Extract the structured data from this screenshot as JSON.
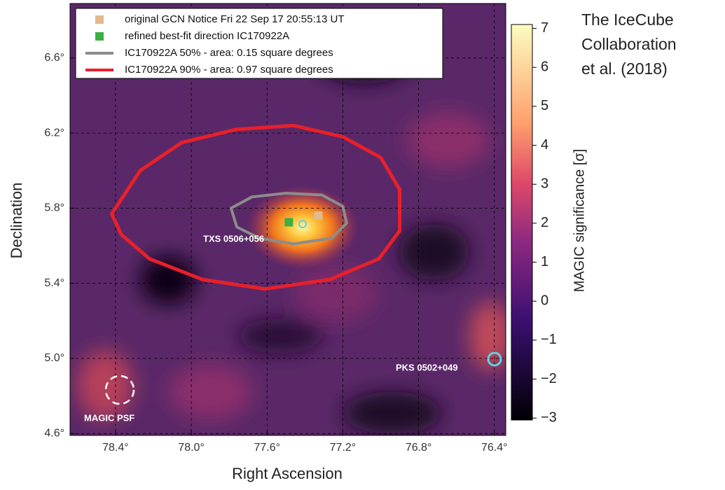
{
  "chart_data": {
    "type": "scatter",
    "xlabel": "Right Ascension",
    "ylabel": "Declination",
    "xlim": [
      78.64,
      76.34
    ],
    "ylim": [
      4.59,
      6.89
    ],
    "xticks": [
      {
        "value": 78.4,
        "label": "78.4°"
      },
      {
        "value": 78.0,
        "label": "78.0°"
      },
      {
        "value": 77.6,
        "label": "77.6°"
      },
      {
        "value": 77.2,
        "label": "77.2°"
      },
      {
        "value": 76.8,
        "label": "76.8°"
      },
      {
        "value": 76.4,
        "label": "76.4°"
      }
    ],
    "yticks": [
      {
        "value": 4.6,
        "label": "4.6°"
      },
      {
        "value": 5.0,
        "label": "5.0°"
      },
      {
        "value": 5.4,
        "label": "5.4°"
      },
      {
        "value": 5.8,
        "label": "5.8°"
      },
      {
        "value": 6.2,
        "label": "6.2°"
      },
      {
        "value": 6.6,
        "label": "6.6°"
      }
    ],
    "grid": true,
    "series": [
      {
        "name": "original GCN Notice Fri 22 Sep 17 20:55:13 UT",
        "color": "#e3b98e",
        "style": "marker",
        "x": [
          77.33
        ],
        "y": [
          5.76
        ]
      },
      {
        "name": "refined best-fit direction IC170922A",
        "color": "#3cb043",
        "style": "marker",
        "x": [
          77.485
        ],
        "y": [
          5.725
        ]
      },
      {
        "name": "IC170922A 50% - area: 0.15 square degrees",
        "color": "#8c8c8c",
        "style": "line",
        "x": [
          77.79,
          77.68,
          77.5,
          77.31,
          77.2,
          77.18,
          77.26,
          77.46,
          77.64,
          77.76
        ],
        "y": [
          5.8,
          5.86,
          5.88,
          5.87,
          5.81,
          5.72,
          5.64,
          5.61,
          5.64,
          5.7
        ]
      },
      {
        "name": "IC170922A 90% - area: 0.97 square degrees",
        "color": "#e8202a",
        "style": "line",
        "x": [
          78.42,
          78.27,
          78.05,
          77.76,
          77.46,
          77.2,
          77.0,
          76.9,
          76.9,
          77.01,
          77.27,
          77.61,
          77.94,
          78.22,
          78.37
        ],
        "y": [
          5.77,
          6.0,
          6.15,
          6.22,
          6.24,
          6.18,
          6.07,
          5.9,
          5.68,
          5.53,
          5.42,
          5.37,
          5.42,
          5.53,
          5.66
        ]
      }
    ],
    "annotations": [
      "TXS 0506+056",
      "PKS 0502+049",
      "MAGIC PSF"
    ],
    "colorbar": {
      "label": "MAGIC significance [σ]",
      "lim": [
        -3.05,
        7.1
      ],
      "ticks": [
        {
          "value": -3,
          "label": "−3"
        },
        {
          "value": -2,
          "label": "−2"
        },
        {
          "value": -1,
          "label": "−1"
        },
        0,
        1,
        2,
        3,
        4,
        5,
        6,
        7
      ]
    }
  },
  "credit": [
    "The IceCube",
    "Collaboration",
    "et al. (2018)"
  ]
}
